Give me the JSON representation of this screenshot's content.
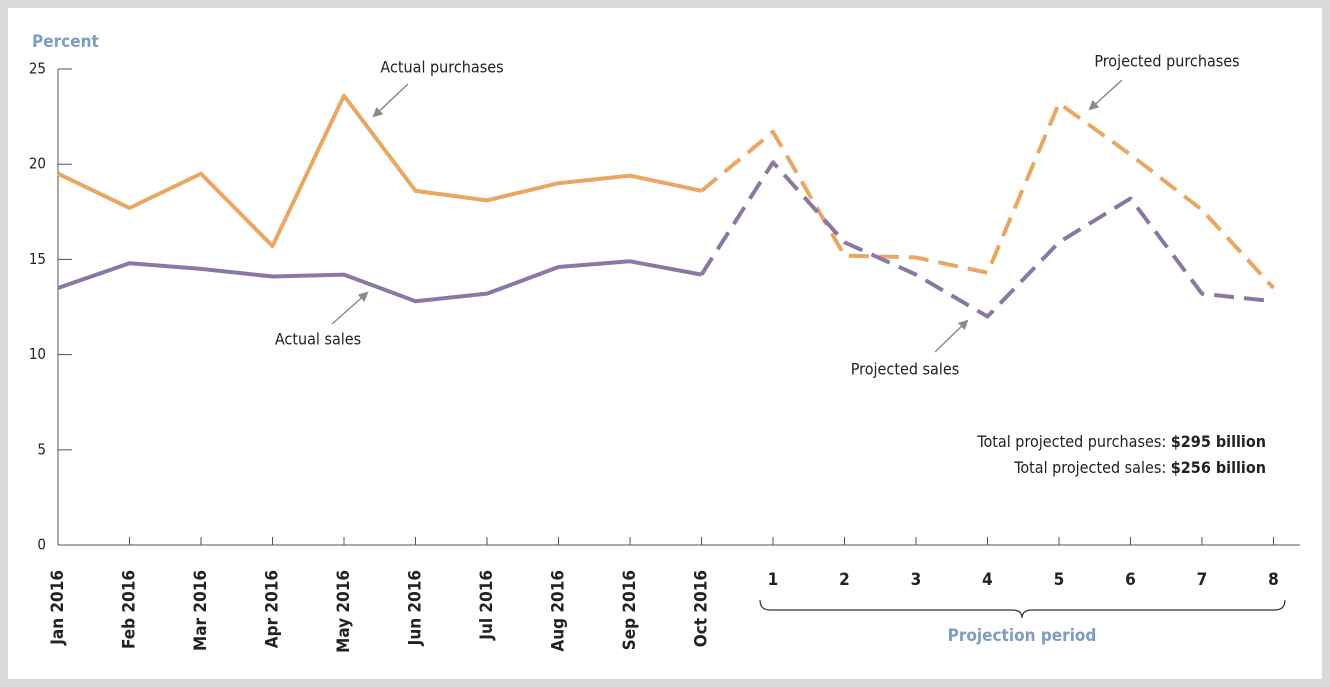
{
  "chart_data": {
    "type": "line",
    "y_label": "Percent",
    "categories": [
      "Jan 2016",
      "Feb 2016",
      "Mar 2016",
      "Apr 2016",
      "May 2016",
      "Jun 2016",
      "Jul 2016",
      "Aug 2016",
      "Sep 2016",
      "Oct 2016",
      "1",
      "2",
      "3",
      "4",
      "5",
      "6",
      "7",
      "8"
    ],
    "series": [
      {
        "name": "Actual purchases",
        "color": "#e8a763",
        "style": "solid",
        "values": [
          19.5,
          17.7,
          19.5,
          15.7,
          23.6,
          18.6,
          18.1,
          19.0,
          19.4,
          18.6,
          null,
          null,
          null,
          null,
          null,
          null,
          null,
          null
        ]
      },
      {
        "name": "Projected purchases",
        "color": "#e8a763",
        "style": "dashed",
        "values": [
          null,
          null,
          null,
          null,
          null,
          null,
          null,
          null,
          null,
          18.6,
          21.7,
          15.2,
          15.1,
          14.3,
          23.2,
          20.5,
          17.6,
          13.5
        ]
      },
      {
        "name": "Actual sales",
        "color": "#8a78a3",
        "style": "solid",
        "values": [
          13.5,
          14.8,
          14.5,
          14.1,
          14.2,
          12.8,
          13.2,
          14.6,
          14.9,
          14.2,
          null,
          null,
          null,
          null,
          null,
          null,
          null,
          null
        ]
      },
      {
        "name": "Projected sales",
        "color": "#8a78a3",
        "style": "dashed",
        "values": [
          null,
          null,
          null,
          null,
          null,
          null,
          null,
          null,
          null,
          14.2,
          20.1,
          15.9,
          14.2,
          12.0,
          15.9,
          18.2,
          13.2,
          12.8
        ]
      }
    ],
    "ylim": [
      0,
      25
    ],
    "yticks": [
      0,
      5,
      10,
      15,
      20,
      25
    ],
    "group_label": "Projection period",
    "annotations": [
      {
        "text": "Total projected purchases:",
        "bold": "$295 billion"
      },
      {
        "text": "Total projected sales:",
        "bold": "$256 billion"
      }
    ]
  }
}
